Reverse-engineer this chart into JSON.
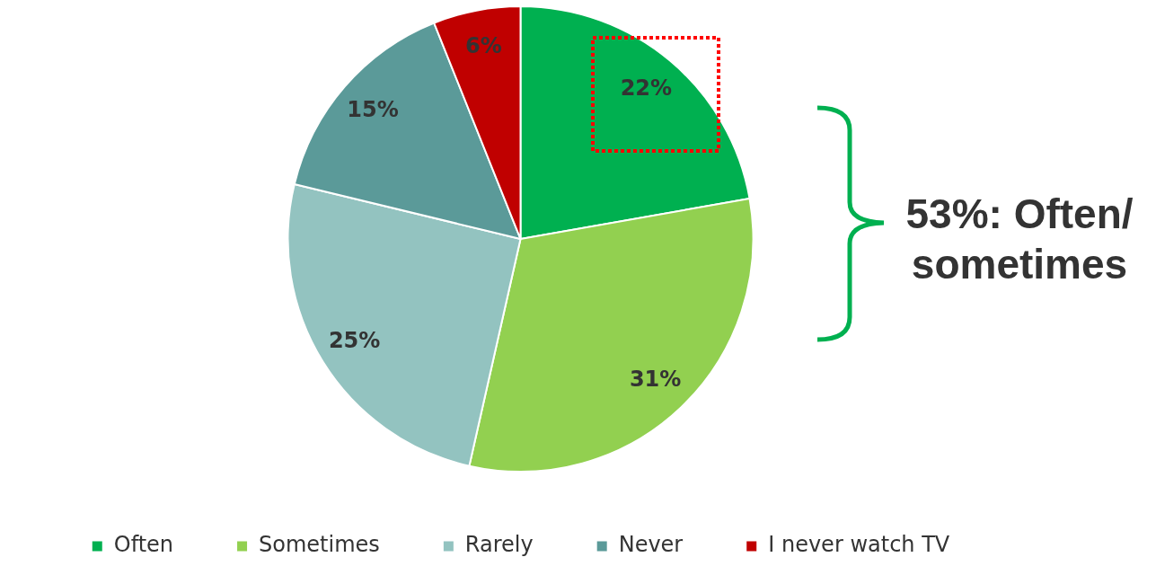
{
  "chart_data": {
    "type": "pie",
    "categories": [
      "Often",
      "Sometimes",
      "Rarely",
      "Never",
      "I never watch TV"
    ],
    "values": [
      22,
      31,
      25,
      15,
      6
    ],
    "colors": [
      "#00b050",
      "#92d050",
      "#93c3c0",
      "#5b9a99",
      "#c00000"
    ],
    "value_labels": [
      "22%",
      "31%",
      "25%",
      "15%",
      "6%"
    ],
    "legend": "bottom",
    "annotations": [
      "53%: Often/ sometimes"
    ]
  }
}
